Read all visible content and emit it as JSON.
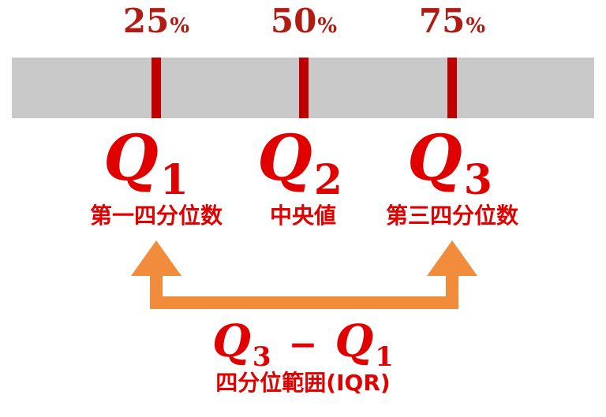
{
  "colors": {
    "bar": "#c9c9c9",
    "tick": "#c00000",
    "percent_text": "#b01c14",
    "quartile_text": "#e00000",
    "arrow": "#f08c3c"
  },
  "quartiles": [
    {
      "percent": "25",
      "percent_symbol": "%",
      "letter": "Q",
      "sub": "1",
      "name": "第一四分位数"
    },
    {
      "percent": "50",
      "percent_symbol": "%",
      "letter": "Q",
      "sub": "2",
      "name": "中央値"
    },
    {
      "percent": "75",
      "percent_symbol": "%",
      "letter": "Q",
      "sub": "3",
      "name": "第三四分位数"
    }
  ],
  "formula": {
    "left_letter": "Q",
    "left_sub": "3",
    "operator": "−",
    "right_letter": "Q",
    "right_sub": "1"
  },
  "iqr_label": "四分位範囲(IQR)"
}
